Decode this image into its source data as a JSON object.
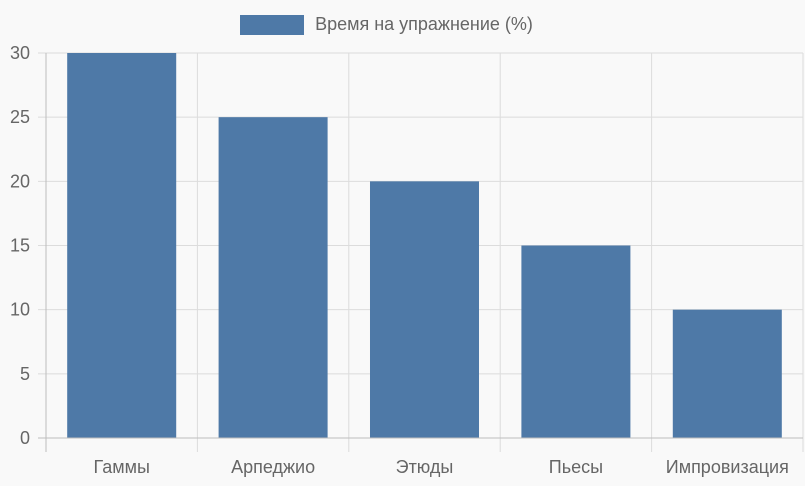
{
  "chart_data": {
    "type": "bar",
    "title": "",
    "categories": [
      "Гаммы",
      "Арпеджио",
      "Этюды",
      "Пьесы",
      "Импровизация"
    ],
    "series": [
      {
        "name": "Время на упражнение (%)",
        "values": [
          30,
          25,
          20,
          15,
          10
        ],
        "color": "#4e79a7"
      }
    ],
    "xlabel": "",
    "ylabel": "",
    "ylim": [
      0,
      30
    ],
    "yticks": [
      0,
      5,
      10,
      15,
      20,
      25,
      30
    ],
    "grid": true,
    "legend_position": "top"
  },
  "legend": {
    "label": "Время на упражнение (%)",
    "color": "#4e79a7"
  },
  "style": {
    "background": "#f9f9f9",
    "grid_color": "#dcdcdc",
    "axis_color": "#bdbdbd",
    "text_color": "#666666"
  }
}
